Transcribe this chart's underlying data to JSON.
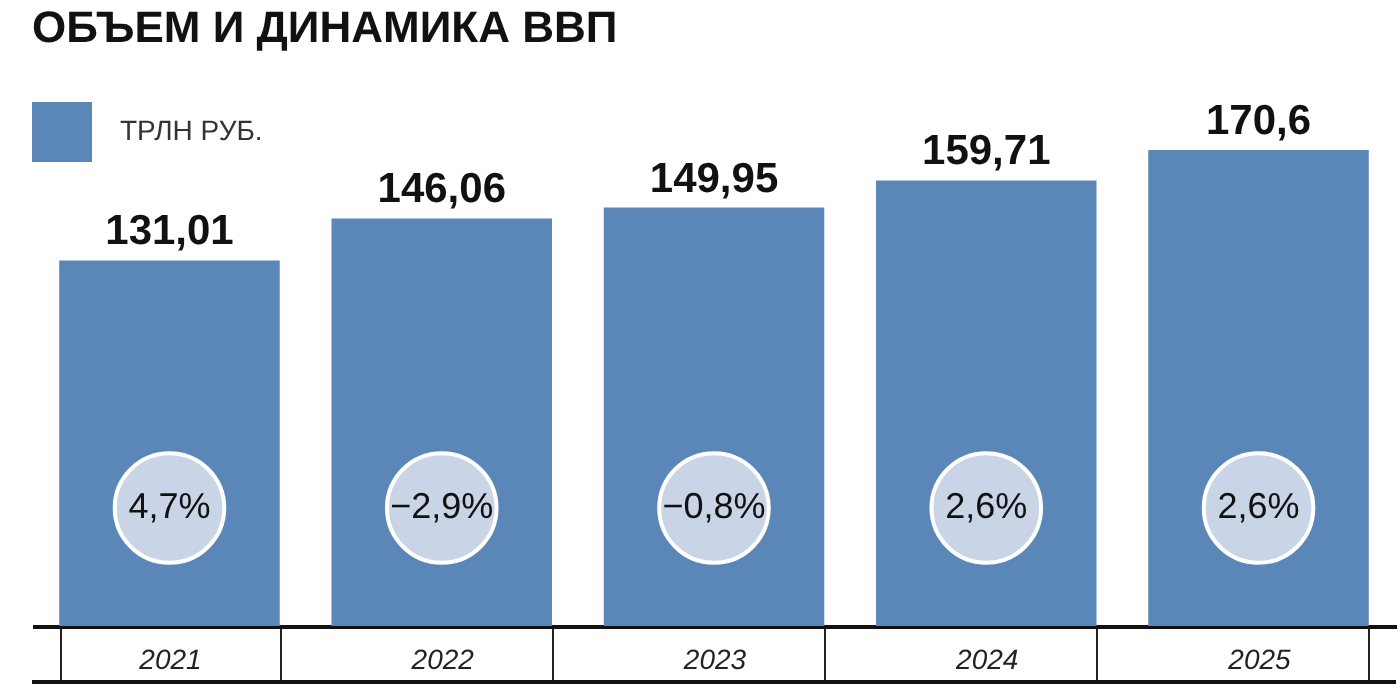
{
  "chart_data": {
    "type": "bar",
    "title": "ОБЪЕМ И ДИНАМИКА ВВП",
    "categories": [
      "2021",
      "2022",
      "2023",
      "2024",
      "2025"
    ],
    "series": [
      {
        "name": "ТРЛН РУБ.",
        "color": "#5b87b8",
        "values": [
          131.01,
          146.06,
          149.95,
          159.71,
          170.6
        ],
        "value_labels": [
          "131,01",
          "146,06",
          "149,95",
          "159,71",
          "170,6"
        ]
      }
    ],
    "annotations": [
      "4,7%",
      "−2,9%",
      "−0,8%",
      "2,6%",
      "2,6%"
    ],
    "legend": "top left",
    "grid": false
  }
}
